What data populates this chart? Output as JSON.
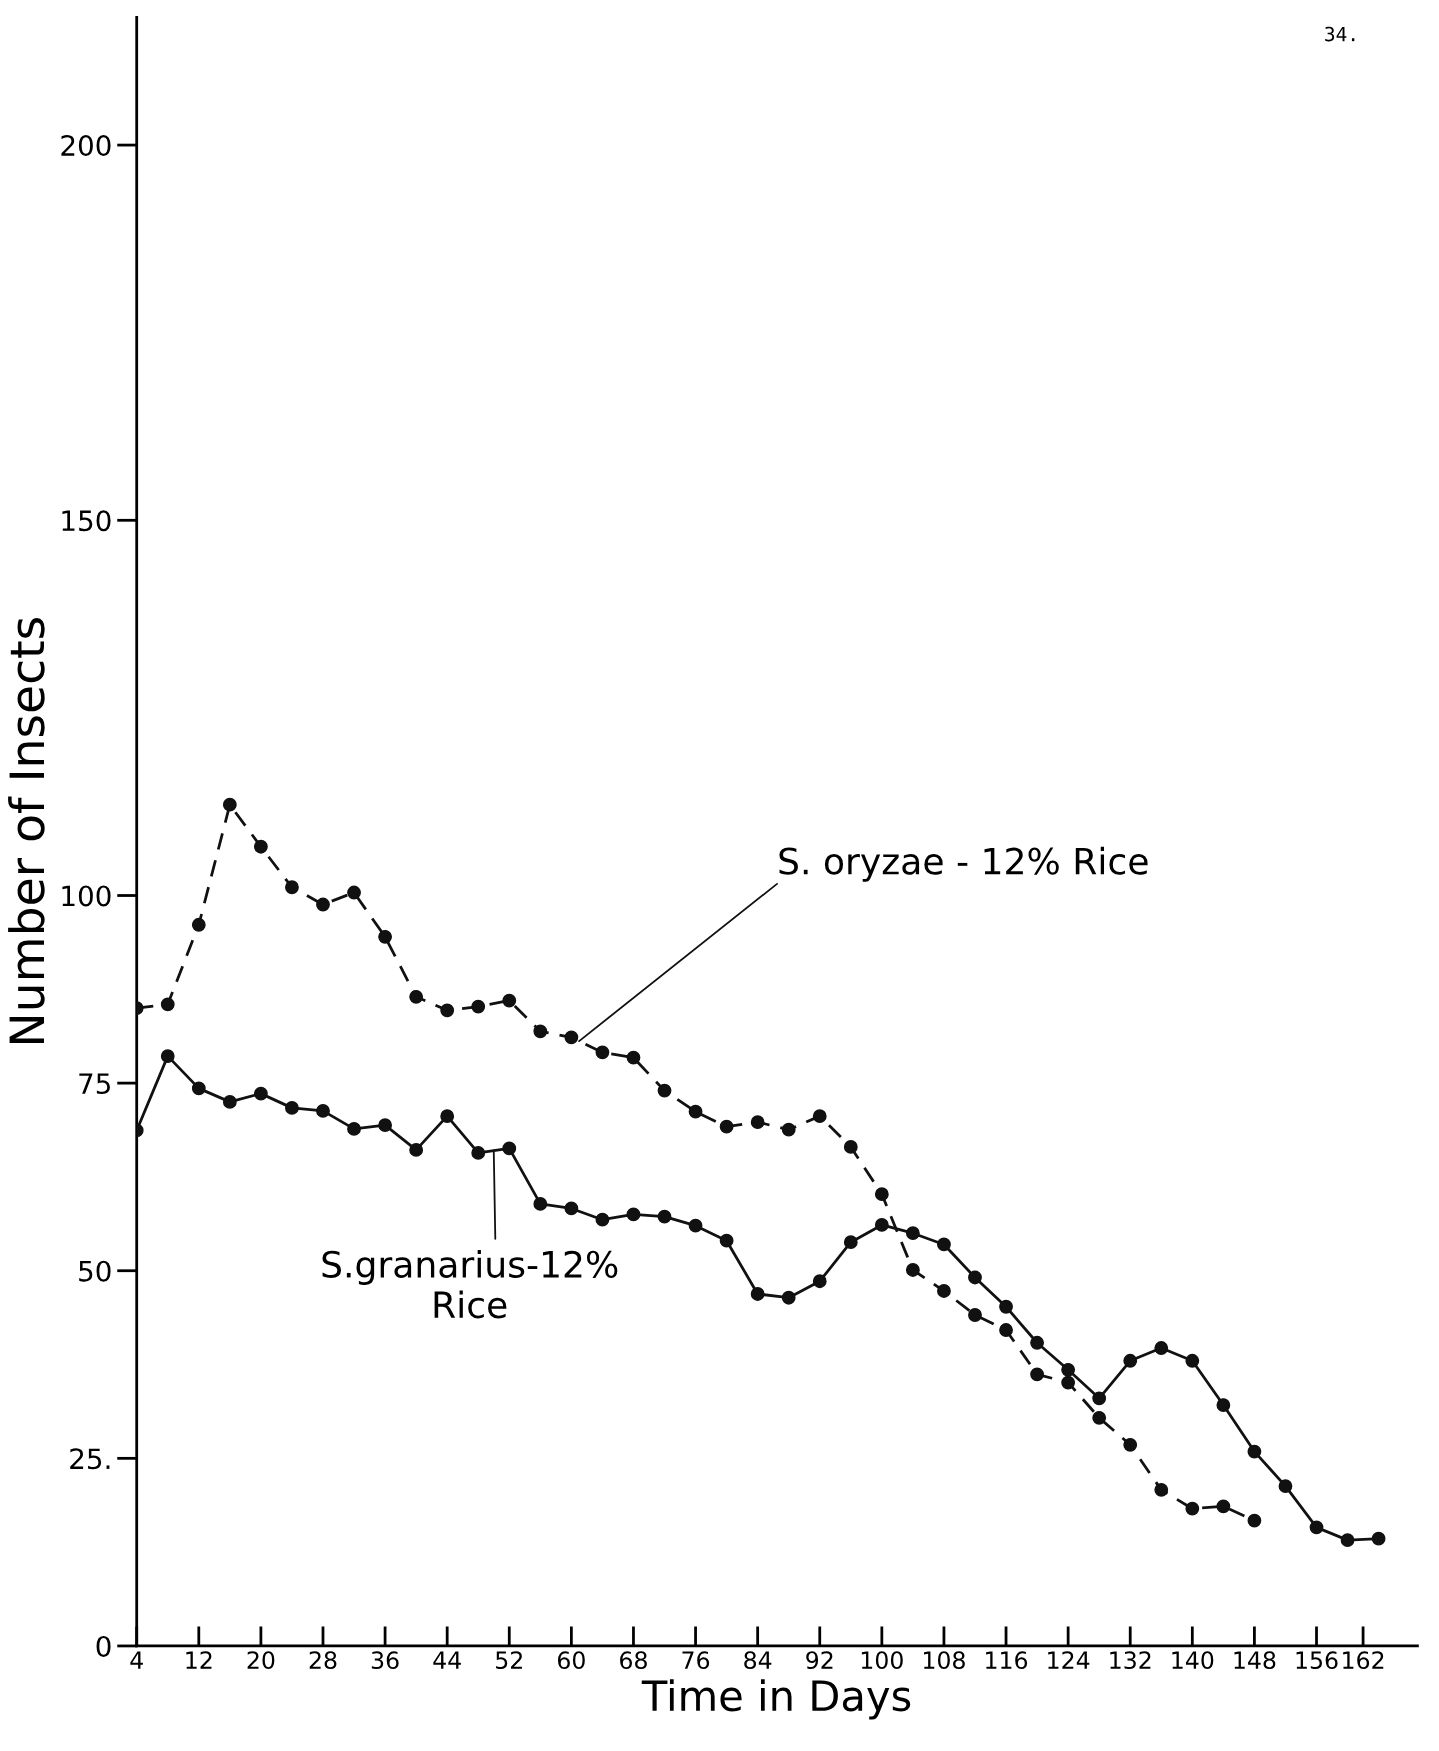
{
  "chart_data": {
    "type": "line",
    "xlabel": "Time in Days",
    "ylabel": "Number of Insects",
    "series": [
      {
        "color": "#111111",
        "line_style": "dashed",
        "x": [
          4,
          8,
          12,
          16,
          20,
          24,
          28,
          32,
          36,
          40,
          44,
          48,
          52,
          56,
          60,
          64,
          68,
          72,
          76,
          80,
          84,
          88,
          92,
          96,
          100,
          104,
          108,
          112,
          116,
          120,
          124,
          128,
          132,
          136,
          140,
          144,
          148
        ],
        "values": [
          85.0,
          85.5,
          96.1,
          112.1,
          106.5,
          101.1,
          98.8,
          100.4,
          94.5,
          86.5,
          84.7,
          85.2,
          86.0,
          81.9,
          81.1,
          79.1,
          78.4,
          74.0,
          71.2,
          69.2,
          69.8,
          68.8,
          70.6,
          66.5,
          60.2,
          50.1,
          47.3,
          44.1,
          42.1,
          36.2,
          35.1,
          30.4,
          26.8,
          20.8,
          18.3,
          18.6,
          16.7
        ]
      },
      {
        "color": "#111111",
        "line_style": "solid",
        "x": [
          4,
          8,
          12,
          16,
          20,
          24,
          28,
          32,
          36,
          40,
          44,
          48,
          52,
          56,
          60,
          64,
          68,
          72,
          76,
          80,
          84,
          88,
          92,
          96,
          100,
          104,
          108,
          112,
          116,
          120,
          124,
          128,
          132,
          136,
          140,
          144,
          148,
          152,
          156,
          160,
          164
        ],
        "values": [
          68.7,
          78.6,
          74.3,
          72.5,
          73.6,
          71.7,
          71.3,
          68.9,
          69.4,
          66.1,
          70.6,
          65.7,
          66.3,
          58.9,
          58.3,
          56.8,
          57.5,
          57.2,
          56.0,
          54.0,
          46.9,
          46.4,
          48.6,
          53.8,
          56.1,
          55.0,
          53.5,
          49.1,
          45.2,
          40.4,
          36.8,
          33.0,
          38.0,
          39.7,
          38.0,
          32.1,
          25.9,
          21.3,
          15.8,
          14.1,
          14.3
        ]
      }
    ],
    "marker": "circle",
    "xlim": [
      4,
      169
    ],
    "ylim": [
      0,
      217
    ],
    "xticks": [
      4,
      12,
      20,
      28,
      36,
      44,
      52,
      60,
      68,
      76,
      84,
      92,
      100,
      108,
      116,
      124,
      132,
      140,
      148,
      156,
      162
    ],
    "yticks": [
      0,
      {
        "value": 25,
        "label": "25."
      },
      50,
      75,
      100,
      150,
      200
    ],
    "grid": false,
    "legend": false,
    "annotations": [
      {
        "text": "S. oryzae - 12% Rice",
        "x": 61,
        "y": 80.6
      },
      {
        "text": "S.granarius-12%\nRice",
        "x": 50,
        "y": 66.0
      },
      "34."
    ]
  }
}
